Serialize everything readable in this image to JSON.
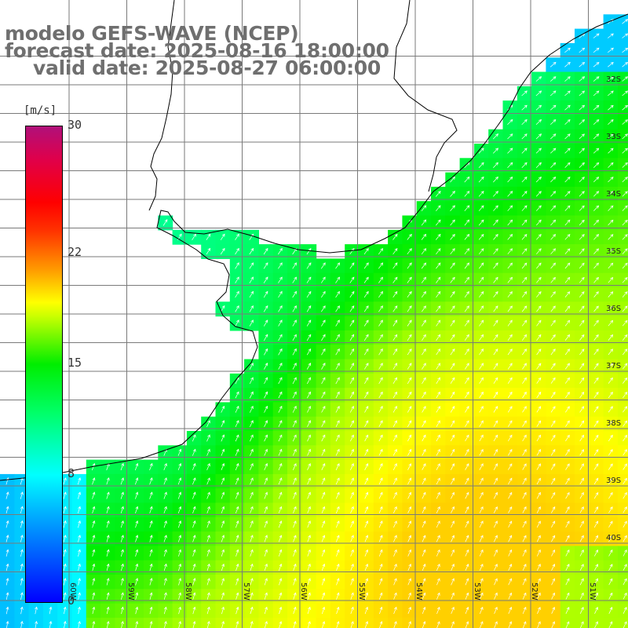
{
  "title": {
    "line1": "modelo GEFS-WAVE (NCEP)",
    "line2": "forecast date: 2025-08-16 18:00:00",
    "line3": "valid date: 2025-08-27 06:00:00"
  },
  "colorbar": {
    "unit": "[m/s]",
    "ticks": [
      "30",
      "22",
      "15",
      "8",
      "0"
    ],
    "tick_values": [
      30,
      22,
      15,
      8,
      0
    ],
    "min": 0,
    "max": 30
  },
  "axes": {
    "lon_labels": [
      "60W",
      "59W",
      "58W",
      "57W",
      "56W",
      "55W",
      "54W",
      "53W",
      "52W",
      "51W"
    ],
    "lon_values": [
      -60,
      -59,
      -58,
      -57,
      -56,
      -55,
      -54,
      -53,
      -52,
      -51
    ],
    "lat_labels": [
      "32S",
      "33S",
      "34S",
      "35S",
      "36S",
      "37S",
      "38S",
      "39S",
      "40S"
    ],
    "lat_values": [
      -32,
      -33,
      -34,
      -35,
      -36,
      -37,
      -38,
      -39,
      -40
    ]
  },
  "field": {
    "variable": "wind speed",
    "arrow_color": "#ffffff",
    "land_color": "#ffffff",
    "grid_color": "#7a7a7a",
    "coast_color": "#000000"
  }
}
